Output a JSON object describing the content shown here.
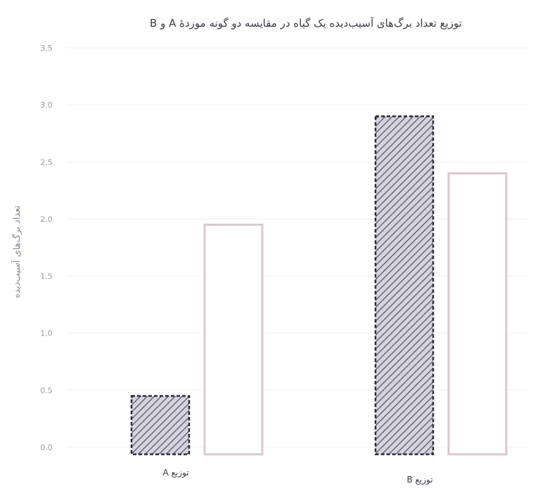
{
  "chart_data": {
    "type": "bar",
    "title": "توزیع تعداد برگ‌های آسیب‌دیده یک گیاه در مقایسه دو گونه موردهٔ A و B",
    "ylabel": "تعداد برگ‌های آسیب‌دیده",
    "xlabel": "",
    "categories": [
      "توزیع A",
      "توزیع B"
    ],
    "series": [
      {
        "values": [
          0.45,
          2.9
        ],
        "style": "hatched"
      },
      {
        "values": [
          1.95,
          2.4
        ],
        "style": "plain"
      }
    ],
    "ylim": [
      0,
      3.5
    ],
    "yticks": [
      "0.0",
      "0.5",
      "1.0",
      "1.5",
      "2.0",
      "2.5",
      "3.0",
      "3.5"
    ],
    "grid": true,
    "legend": "none"
  }
}
